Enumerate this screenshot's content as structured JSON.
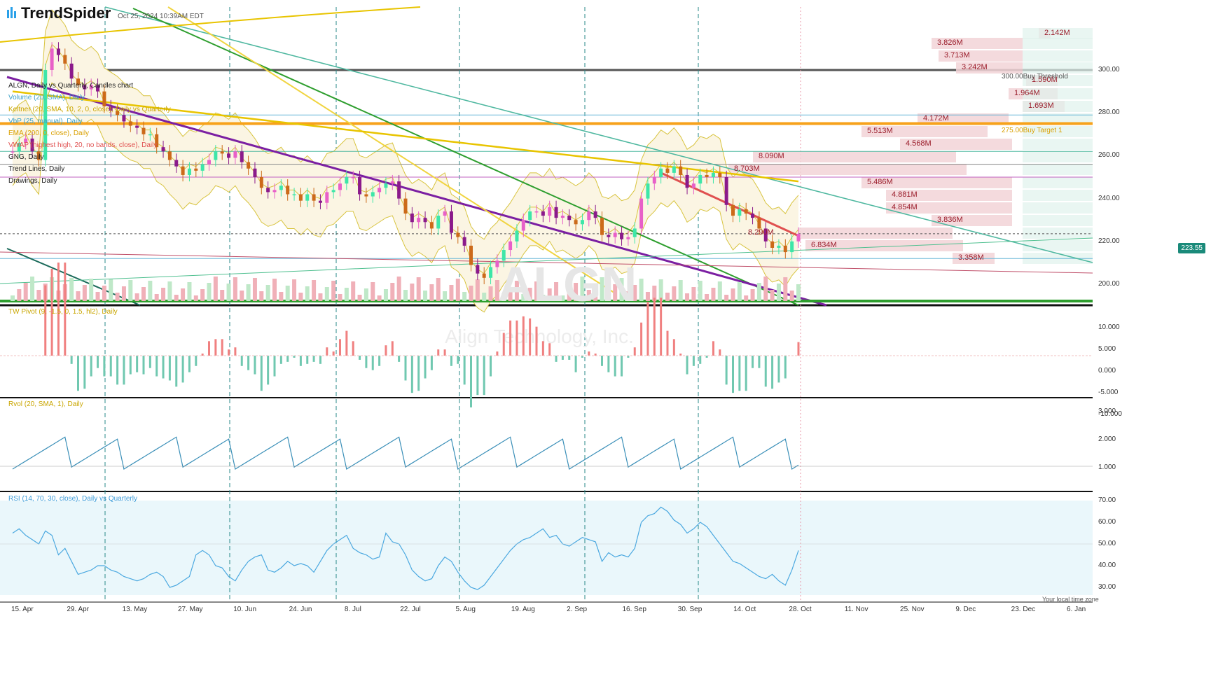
{
  "header": {
    "brand": "TrendSpider",
    "timestamp": "Oct 25, 2024 10:39AM EDT"
  },
  "layers": [
    {
      "label": "ALGN, Daily vs Quarterly, Candles chart",
      "color": "#222"
    },
    {
      "label": "Volume (20, SMA), Daily",
      "color": "#3aa0c8"
    },
    {
      "label": "Keltner (20, SMA, 10, 2, 0, close), Daily vs Quarterly",
      "color": "#c9a600"
    },
    {
      "label": "VbP (25, manual), Daily",
      "color": "#3aa0c8"
    },
    {
      "label": "EMA (200, 0, close), Daily",
      "color": "#d9a000"
    },
    {
      "label": "VWAP (highest high, 20, no bands, close), Daily",
      "color": "#e05050"
    },
    {
      "label": "GNG, Daily",
      "color": "#222"
    },
    {
      "label": "Trend Lines, Daily",
      "color": "#222"
    },
    {
      "label": "Drawings, Daily",
      "color": "#222"
    }
  ],
  "watermark": {
    "ticker": "ALGN",
    "company": "Align Technology, Inc."
  },
  "price_axis": {
    "ticks": [
      "300.00",
      "280.00",
      "260.00",
      "240.00",
      "220.00",
      "200.00"
    ],
    "current": "223.55"
  },
  "price_annotations": [
    {
      "label": "300.00Buy Threshold",
      "color": "#555"
    },
    {
      "label": "275.00Buy Target 1",
      "color": "#d9a000"
    }
  ],
  "vbp_labels": [
    "2.142M",
    "3.826M",
    "3.713M",
    "3.242M",
    "1.590M",
    "1.964M",
    "1.693M",
    "4.172M",
    "5.513M",
    "4.568M",
    "8.090M",
    "8.703M",
    "5.486M",
    "4.881M",
    "4.854M",
    "3.836M",
    "8.290M",
    "6.834M",
    "3.358M"
  ],
  "pivot_panel": {
    "title": "TW Pivot (9, -1.5, 0, 1.5, hl2), Daily",
    "ticks": [
      "10.000",
      "5.000",
      "0.000",
      "-5.000",
      "-10.000"
    ]
  },
  "rvol_panel": {
    "title": "Rvol (20, SMA, 1), Daily",
    "ticks": [
      "3.000",
      "2.000",
      "1.000"
    ]
  },
  "rsi_panel": {
    "title": "RSI (14, 70, 30, close), Daily vs Quarterly",
    "ticks": [
      "70.00",
      "60.00",
      "50.00",
      "40.00",
      "30.00"
    ]
  },
  "x_axis": {
    "labels": [
      "15. Apr",
      "29. Apr",
      "13. May",
      "27. May",
      "10. Jun",
      "24. Jun",
      "8. Jul",
      "22. Jul",
      "5. Aug",
      "19. Aug",
      "2. Sep",
      "16. Sep",
      "30. Sep",
      "14. Oct",
      "28. Oct",
      "11. Nov",
      "25. Nov",
      "9. Dec",
      "23. Dec",
      "6. Jan"
    ],
    "note": "Your local time zone"
  },
  "colors": {
    "up": "#3ee6a8",
    "down": "#8b1a8b",
    "up_alt": "#e860c8",
    "down_alt": "#cc6a1a",
    "ema": "#e8c400",
    "purple_trend": "#7b1fa2",
    "green_trend": "#2e9e2e",
    "teal_line": "#4fb8a0",
    "orange_line": "#f7a21b"
  },
  "chart_data": {
    "type": "line",
    "series": [
      {
        "name": "",
        "close": [
          262,
          266,
          268,
          262,
          258,
          300,
          310,
          307,
          303,
          296,
          293,
          291,
          293,
          290,
          283,
          281,
          279,
          276,
          274,
          273,
          270,
          270,
          264,
          262,
          258,
          255,
          251,
          254,
          253,
          256,
          258,
          262,
          261,
          259,
          262,
          257,
          254,
          250,
          245,
          243,
          244,
          246,
          242,
          242,
          239,
          242,
          239,
          238,
          243,
          244,
          247,
          250,
          250,
          242,
          241,
          243,
          245,
          247,
          248,
          240,
          233,
          229,
          231,
          229,
          226,
          232,
          234,
          224,
          222,
          218,
          209,
          205,
          203,
          208,
          211,
          216,
          220,
          225,
          230,
          234,
          234,
          232,
          236,
          231,
          232,
          230,
          228,
          230,
          234,
          231,
          223,
          222,
          224,
          221,
          222,
          226,
          240,
          247,
          250,
          254,
          252,
          255,
          251,
          245,
          247,
          251,
          250,
          252,
          250,
          237,
          232,
          235,
          233,
          231,
          226,
          220,
          217,
          218,
          215,
          220,
          223.55
        ]
      },
      {
        "name": "",
        "values": [
          55,
          57,
          54,
          52,
          50,
          56,
          54,
          45,
          48,
          42,
          36,
          37,
          38,
          40,
          40,
          38,
          37,
          35,
          34,
          33,
          34,
          36,
          37,
          35,
          30,
          31,
          33,
          35,
          45,
          47,
          45,
          40,
          39,
          35,
          33,
          38,
          42,
          44,
          45,
          38,
          37,
          39,
          42,
          40,
          41,
          40,
          37,
          42,
          47,
          50,
          52,
          54,
          48,
          46,
          45,
          43,
          44,
          55,
          51,
          50,
          45,
          38,
          35,
          33,
          34,
          40,
          44,
          42,
          37,
          33,
          30,
          29,
          31,
          35,
          39,
          43,
          47,
          50,
          52,
          53,
          55,
          57,
          53,
          54,
          50,
          49,
          51,
          53,
          52,
          51,
          42,
          46,
          44,
          45,
          44,
          48,
          60,
          63,
          64,
          67,
          65,
          61,
          59,
          55,
          57,
          60,
          58,
          54,
          50,
          46,
          42,
          41,
          39,
          37,
          35,
          34,
          36,
          33,
          31,
          38,
          47
        ]
      }
    ]
  }
}
